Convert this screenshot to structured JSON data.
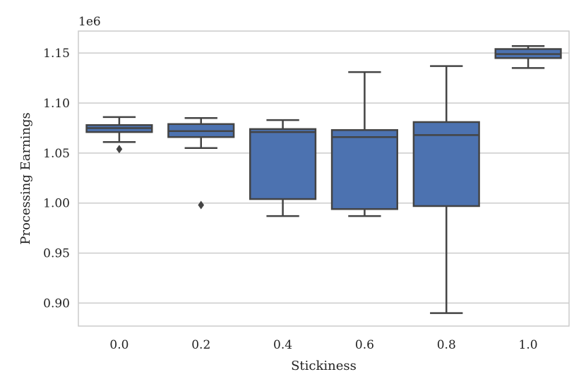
{
  "chart_data": {
    "type": "box",
    "xlabel": "Stickiness",
    "ylabel": "Processing Earnings",
    "y_offset_label": "1e6",
    "ylim": [
      0.877,
      1.172
    ],
    "y_ticks": [
      0.9,
      0.95,
      1.0,
      1.05,
      1.1,
      1.15
    ],
    "y_tick_labels": [
      "0.90",
      "0.95",
      "1.00",
      "1.05",
      "1.10",
      "1.15"
    ],
    "grid": true,
    "box_color": "#4c72b0",
    "line_color": "#444444",
    "categories": [
      "0.0",
      "0.2",
      "0.4",
      "0.6",
      "0.8",
      "1.0"
    ],
    "boxes": [
      {
        "category": "0.0",
        "whisker_low": 1.061,
        "q1": 1.071,
        "median": 1.075,
        "q3": 1.078,
        "whisker_high": 1.086,
        "outliers": [
          1.054
        ]
      },
      {
        "category": "0.2",
        "whisker_low": 1.055,
        "q1": 1.066,
        "median": 1.072,
        "q3": 1.079,
        "whisker_high": 1.085,
        "outliers": [
          0.998
        ]
      },
      {
        "category": "0.4",
        "whisker_low": 0.987,
        "q1": 1.004,
        "median": 1.071,
        "q3": 1.074,
        "whisker_high": 1.083,
        "outliers": []
      },
      {
        "category": "0.6",
        "whisker_low": 0.987,
        "q1": 0.994,
        "median": 1.066,
        "q3": 1.073,
        "whisker_high": 1.131,
        "outliers": []
      },
      {
        "category": "0.8",
        "whisker_low": 0.89,
        "q1": 0.997,
        "median": 1.068,
        "q3": 1.081,
        "whisker_high": 1.137,
        "outliers": []
      },
      {
        "category": "1.0",
        "whisker_low": 1.135,
        "q1": 1.145,
        "median": 1.149,
        "q3": 1.154,
        "whisker_high": 1.157,
        "outliers": []
      }
    ]
  }
}
